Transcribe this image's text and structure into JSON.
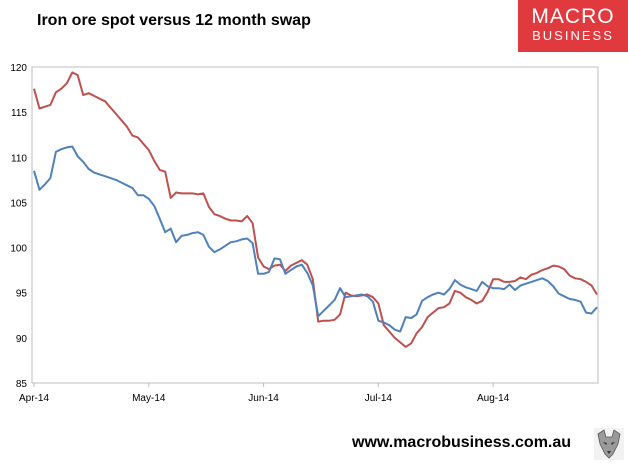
{
  "header": {
    "title": "Iron ore spot versus 12 month swap"
  },
  "logo": {
    "line1": "MACRO",
    "line2": "BUSINESS",
    "color": "#e0393e"
  },
  "footer": {
    "url": "www.macrobusiness.com.au",
    "emblem_icon": "wolf-emblem-icon"
  },
  "chart_data": {
    "type": "line",
    "title": "Iron ore spot versus 12 month swap",
    "xlabel": "",
    "ylabel": "",
    "ylim": [
      85,
      120
    ],
    "yticks": [
      85,
      90,
      95,
      100,
      105,
      110,
      115,
      120
    ],
    "x_ticks": [
      "Apr-14",
      "May-14",
      "Jun-14",
      "Jul-14",
      "Aug-14"
    ],
    "x_tick_positions": [
      0,
      21,
      42,
      63,
      84
    ],
    "x_count": 104,
    "grid": false,
    "legend": "none",
    "series": [
      {
        "color": "#c0504d",
        "values": [
          117.6,
          115.4,
          115.6,
          115.8,
          117.2,
          117.6,
          118.2,
          119.4,
          119.1,
          116.9,
          117.1,
          116.8,
          116.5,
          116.2,
          115.5,
          114.8,
          114.1,
          113.4,
          112.4,
          112.2,
          111.5,
          110.8,
          109.6,
          108.6,
          108.4,
          105.5,
          106.1,
          106.0,
          106.0,
          106.0,
          105.9,
          106.0,
          104.5,
          103.7,
          103.5,
          103.2,
          103.0,
          103.0,
          102.9,
          103.5,
          102.7,
          98.9,
          97.9,
          97.6,
          98.0,
          98.1,
          97.4,
          98.0,
          98.3,
          98.6,
          98.1,
          96.5,
          91.8,
          91.9,
          91.9,
          92.0,
          92.6,
          95.0,
          94.7,
          94.6,
          94.7,
          94.8,
          94.5,
          93.8,
          91.4,
          90.7,
          90.0,
          89.5,
          89.0,
          89.4,
          90.5,
          91.2,
          92.3,
          92.8,
          93.3,
          93.4,
          93.8,
          95.2,
          95.0,
          94.5,
          94.2,
          93.8,
          94.1,
          95.1,
          96.5,
          96.5,
          96.2,
          96.2,
          96.3,
          96.7,
          96.5,
          97.0,
          97.2,
          97.5,
          97.7,
          98.0,
          97.9,
          97.6,
          96.9,
          96.6,
          96.5,
          96.2,
          95.8,
          94.8
        ]
      },
      {
        "color": "#4f81bd",
        "values": [
          108.5,
          106.4,
          107.0,
          107.7,
          110.6,
          110.9,
          111.1,
          111.2,
          110.1,
          109.5,
          108.7,
          108.3,
          108.1,
          107.9,
          107.7,
          107.5,
          107.2,
          106.9,
          106.6,
          105.8,
          105.8,
          105.4,
          104.6,
          103.2,
          101.7,
          102.1,
          100.6,
          101.3,
          101.4,
          101.6,
          101.7,
          101.4,
          100.1,
          99.5,
          99.8,
          100.2,
          100.6,
          100.7,
          100.9,
          101.0,
          100.5,
          97.1,
          97.1,
          97.3,
          98.8,
          98.7,
          97.1,
          97.5,
          97.9,
          98.1,
          97.2,
          95.8,
          92.4,
          93.0,
          93.6,
          94.2,
          95.5,
          94.5,
          94.6,
          94.7,
          94.8,
          94.6,
          94.0,
          91.9,
          91.7,
          91.4,
          90.9,
          90.7,
          92.3,
          92.2,
          92.6,
          94.1,
          94.5,
          94.8,
          95.0,
          94.8,
          95.4,
          96.4,
          95.9,
          95.6,
          95.4,
          95.2,
          96.2,
          95.7,
          95.5,
          95.5,
          95.4,
          95.9,
          95.3,
          95.8,
          96.0,
          96.2,
          96.4,
          96.6,
          96.3,
          95.7,
          94.9,
          94.6,
          94.3,
          94.2,
          94.0,
          92.8,
          92.7,
          93.4
        ]
      }
    ]
  }
}
